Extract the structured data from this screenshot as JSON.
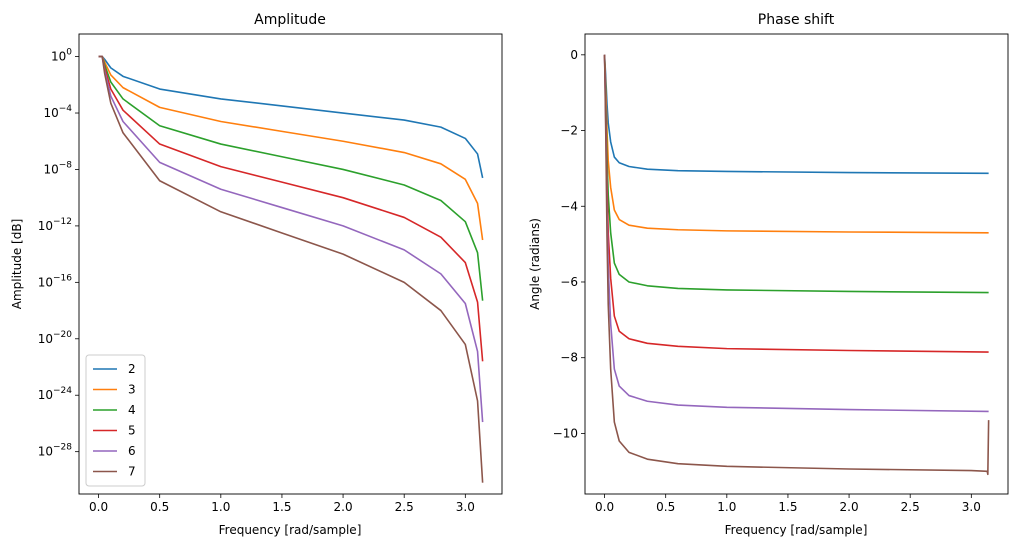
{
  "chart_data": [
    {
      "type": "line",
      "title": "Amplitude",
      "xlabel": "Frequency [rad/sample]",
      "ylabel": "Amplitude [dB]",
      "yscale": "log",
      "xlim": [
        -0.16,
        3.3
      ],
      "ylim_exp": [
        -31,
        1.6
      ],
      "xticks": [
        "0.0",
        "0.5",
        "1.0",
        "1.5",
        "2.0",
        "2.5",
        "3.0"
      ],
      "yticks": [
        {
          "base": "10",
          "exp": "0"
        },
        {
          "base": "10",
          "exp": "−4"
        },
        {
          "base": "10",
          "exp": "−8"
        },
        {
          "base": "10",
          "exp": "−12"
        },
        {
          "base": "10",
          "exp": "−16"
        },
        {
          "base": "10",
          "exp": "−20"
        },
        {
          "base": "10",
          "exp": "−24"
        },
        {
          "base": "10",
          "exp": "−28"
        }
      ],
      "legend": "lower-left",
      "grid": false,
      "series": [
        {
          "name": "2",
          "color": "#1f77b4",
          "x": [
            0.0,
            0.03,
            0.05,
            0.1,
            0.2,
            0.5,
            1.0,
            1.5,
            2.0,
            2.5,
            2.8,
            3.0,
            3.1,
            3.1416
          ],
          "y_exp": [
            0,
            0,
            -0.2,
            -0.8,
            -1.4,
            -2.3,
            -3.0,
            -3.5,
            -4.0,
            -4.5,
            -5.0,
            -5.8,
            -6.9,
            -8.6
          ]
        },
        {
          "name": "3",
          "color": "#ff7f0e",
          "x": [
            0.0,
            0.03,
            0.05,
            0.1,
            0.2,
            0.5,
            1.0,
            1.5,
            2.0,
            2.5,
            2.8,
            3.0,
            3.1,
            3.1416
          ],
          "y_exp": [
            0,
            0,
            -0.4,
            -1.3,
            -2.2,
            -3.6,
            -4.6,
            -5.3,
            -6.0,
            -6.8,
            -7.6,
            -8.7,
            -10.4,
            -13.0
          ]
        },
        {
          "name": "4",
          "color": "#2ca02c",
          "x": [
            0.0,
            0.03,
            0.05,
            0.1,
            0.2,
            0.5,
            1.0,
            1.5,
            2.0,
            2.5,
            2.8,
            3.0,
            3.1,
            3.1416
          ],
          "y_exp": [
            0,
            0,
            -0.6,
            -1.8,
            -3.0,
            -4.9,
            -6.2,
            -7.1,
            -8.0,
            -9.1,
            -10.2,
            -11.7,
            -13.9,
            -17.3
          ]
        },
        {
          "name": "5",
          "color": "#d62728",
          "x": [
            0.0,
            0.03,
            0.05,
            0.1,
            0.2,
            0.5,
            1.0,
            1.5,
            2.0,
            2.5,
            2.8,
            3.0,
            3.1,
            3.1416
          ],
          "y_exp": [
            0,
            0,
            -0.8,
            -2.3,
            -3.8,
            -6.2,
            -7.8,
            -8.9,
            -10.0,
            -11.4,
            -12.8,
            -14.6,
            -17.4,
            -21.6
          ]
        },
        {
          "name": "6",
          "color": "#9467bd",
          "x": [
            0.0,
            0.03,
            0.05,
            0.1,
            0.2,
            0.5,
            1.0,
            1.5,
            2.0,
            2.5,
            2.8,
            3.0,
            3.1,
            3.1416
          ],
          "y_exp": [
            0,
            0,
            -1.0,
            -2.8,
            -4.6,
            -7.5,
            -9.4,
            -10.7,
            -12.0,
            -13.7,
            -15.4,
            -17.5,
            -20.9,
            -25.9
          ]
        },
        {
          "name": "7",
          "color": "#8c564b",
          "x": [
            0.0,
            0.03,
            0.05,
            0.1,
            0.2,
            0.5,
            1.0,
            1.5,
            2.0,
            2.5,
            2.8,
            3.0,
            3.1,
            3.1416
          ],
          "y_exp": [
            0,
            0,
            -1.2,
            -3.3,
            -5.4,
            -8.8,
            -11.0,
            -12.5,
            -14.0,
            -16.0,
            -18.0,
            -20.4,
            -24.4,
            -30.2
          ]
        }
      ]
    },
    {
      "type": "line",
      "title": "Phase shift",
      "xlabel": "Frequency [rad/sample]",
      "ylabel": "Angle (radians)",
      "xlim": [
        -0.16,
        3.3
      ],
      "ylim": [
        -11.6,
        0.55
      ],
      "xticks": [
        "0.0",
        "0.5",
        "1.0",
        "1.5",
        "2.0",
        "2.5",
        "3.0"
      ],
      "yticks": [
        "0",
        "−2",
        "−4",
        "−6",
        "−8",
        "−10"
      ],
      "ytick_values": [
        0,
        -2,
        -4,
        -6,
        -8,
        -10
      ],
      "grid": false,
      "series": [
        {
          "name": "2",
          "color": "#1f77b4",
          "x": [
            0.0,
            0.01,
            0.02,
            0.03,
            0.05,
            0.08,
            0.12,
            0.2,
            0.35,
            0.6,
            1.0,
            2.0,
            3.1416
          ],
          "y": [
            0.0,
            -0.6,
            -1.3,
            -1.8,
            -2.3,
            -2.7,
            -2.85,
            -2.95,
            -3.02,
            -3.06,
            -3.08,
            -3.11,
            -3.13
          ]
        },
        {
          "name": "3",
          "color": "#ff7f0e",
          "x": [
            0.0,
            0.01,
            0.02,
            0.03,
            0.05,
            0.08,
            0.12,
            0.2,
            0.35,
            0.6,
            1.0,
            2.0,
            3.1416
          ],
          "y": [
            0.0,
            -0.9,
            -2.0,
            -2.8,
            -3.5,
            -4.1,
            -4.35,
            -4.5,
            -4.58,
            -4.62,
            -4.65,
            -4.68,
            -4.7
          ]
        },
        {
          "name": "4",
          "color": "#2ca02c",
          "x": [
            0.0,
            0.01,
            0.02,
            0.03,
            0.05,
            0.08,
            0.12,
            0.2,
            0.35,
            0.6,
            1.0,
            2.0,
            3.1416
          ],
          "y": [
            0.0,
            -1.2,
            -2.7,
            -3.7,
            -4.7,
            -5.5,
            -5.8,
            -6.0,
            -6.1,
            -6.17,
            -6.21,
            -6.25,
            -6.28
          ]
        },
        {
          "name": "5",
          "color": "#d62728",
          "x": [
            0.0,
            0.01,
            0.02,
            0.03,
            0.05,
            0.08,
            0.12,
            0.2,
            0.35,
            0.6,
            1.0,
            2.0,
            3.1416
          ],
          "y": [
            0.0,
            -1.5,
            -3.4,
            -4.7,
            -5.9,
            -6.9,
            -7.3,
            -7.5,
            -7.62,
            -7.7,
            -7.76,
            -7.81,
            -7.85
          ]
        },
        {
          "name": "6",
          "color": "#9467bd",
          "x": [
            0.0,
            0.01,
            0.02,
            0.03,
            0.05,
            0.08,
            0.12,
            0.2,
            0.35,
            0.6,
            1.0,
            2.0,
            3.1416
          ],
          "y": [
            0.0,
            -1.8,
            -4.1,
            -5.6,
            -7.1,
            -8.3,
            -8.75,
            -9.0,
            -9.15,
            -9.25,
            -9.31,
            -9.37,
            -9.42
          ]
        },
        {
          "name": "7",
          "color": "#8c564b",
          "x": [
            0.0,
            0.01,
            0.02,
            0.03,
            0.05,
            0.08,
            0.12,
            0.2,
            0.35,
            0.6,
            1.0,
            2.0,
            3.0,
            3.13,
            3.135,
            3.1416
          ],
          "y": [
            0.0,
            -2.1,
            -4.8,
            -6.6,
            -8.3,
            -9.7,
            -10.2,
            -10.5,
            -10.68,
            -10.8,
            -10.87,
            -10.94,
            -10.98,
            -11.0,
            -11.08,
            -9.65
          ]
        }
      ]
    }
  ]
}
